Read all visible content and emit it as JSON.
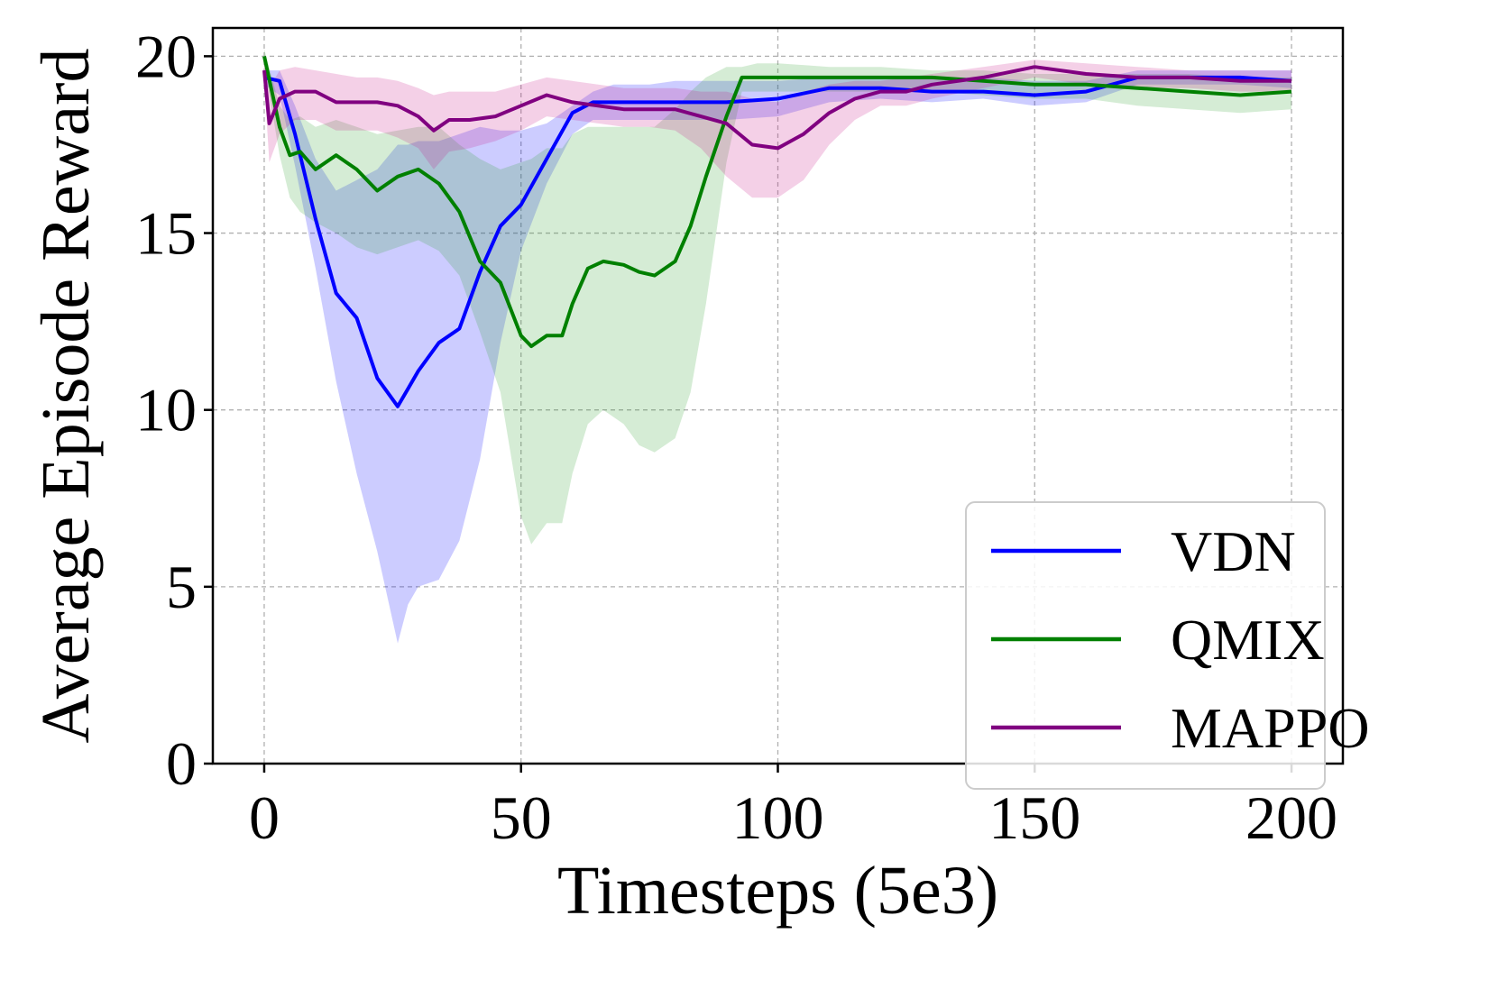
{
  "chart_data": {
    "type": "line",
    "title": "",
    "xlabel": "Timesteps (5e3)",
    "ylabel": "Average Episode Reward",
    "xlim": [
      -10,
      210
    ],
    "ylim": [
      0,
      20.8
    ],
    "xticks": [
      0,
      50,
      100,
      150,
      200
    ],
    "xtick_labels": [
      "0",
      "50",
      "100",
      "150",
      "200"
    ],
    "yticks": [
      0,
      5,
      10,
      15,
      20
    ],
    "ytick_labels": [
      "0",
      "5",
      "10",
      "15",
      "20"
    ],
    "grid": true,
    "legend_position": "lower-right",
    "series": [
      {
        "name": "VDN",
        "color": "#0000ff",
        "band_color": "#0000ff",
        "x": [
          0,
          3,
          6,
          10,
          14,
          18,
          22,
          26,
          28,
          30,
          34,
          38,
          42,
          46,
          50,
          55,
          60,
          64,
          68,
          75,
          80,
          90,
          100,
          110,
          120,
          130,
          140,
          150,
          160,
          170,
          180,
          190,
          200
        ],
        "y": [
          19.4,
          19.3,
          17.8,
          15.4,
          13.3,
          12.6,
          10.9,
          10.1,
          10.6,
          11.1,
          11.9,
          12.3,
          13.9,
          15.2,
          15.8,
          17.1,
          18.4,
          18.7,
          18.7,
          18.7,
          18.7,
          18.7,
          18.8,
          19.1,
          19.1,
          19.0,
          19.0,
          18.9,
          19.0,
          19.4,
          19.4,
          19.4,
          19.3
        ],
        "lower": [
          19.2,
          18.9,
          16.9,
          14.0,
          10.8,
          8.2,
          6.0,
          3.4,
          4.5,
          5.0,
          5.2,
          6.3,
          8.6,
          11.9,
          14.5,
          16.4,
          17.8,
          18.2,
          18.2,
          18.2,
          18.2,
          18.2,
          18.3,
          18.7,
          18.8,
          18.7,
          18.8,
          18.6,
          18.7,
          19.2,
          19.2,
          19.2,
          19.1
        ],
        "upper": [
          19.6,
          19.6,
          18.6,
          17.1,
          16.2,
          16.5,
          16.8,
          17.5,
          17.5,
          17.6,
          17.6,
          17.8,
          18.0,
          17.9,
          17.9,
          18.1,
          18.6,
          19.0,
          19.2,
          19.2,
          19.3,
          19.3,
          19.3,
          19.4,
          19.4,
          19.4,
          19.4,
          19.3,
          19.3,
          19.6,
          19.6,
          19.6,
          19.6
        ]
      },
      {
        "name": "QMIX",
        "color": "#008000",
        "band_color": "#2ca02c",
        "x": [
          0,
          3,
          5,
          7,
          10,
          14,
          18,
          22,
          26,
          30,
          34,
          38,
          42,
          46,
          50,
          52,
          55,
          58,
          60,
          63,
          66,
          70,
          73,
          76,
          80,
          83,
          86,
          90,
          93,
          96,
          100,
          110,
          120,
          130,
          140,
          150,
          160,
          170,
          180,
          190,
          200
        ],
        "y": [
          20.0,
          18.0,
          17.2,
          17.3,
          16.8,
          17.2,
          16.8,
          16.2,
          16.6,
          16.8,
          16.4,
          15.6,
          14.2,
          13.6,
          12.1,
          11.8,
          12.1,
          12.1,
          13.0,
          14.0,
          14.2,
          14.1,
          13.9,
          13.8,
          14.2,
          15.2,
          16.6,
          18.3,
          19.4,
          19.4,
          19.4,
          19.4,
          19.4,
          19.4,
          19.3,
          19.2,
          19.2,
          19.1,
          19.0,
          18.9,
          19.0
        ],
        "lower": [
          19.8,
          17.2,
          16.0,
          15.6,
          15.3,
          15.0,
          14.6,
          14.4,
          14.6,
          14.8,
          14.5,
          13.8,
          12.2,
          10.5,
          7.0,
          6.2,
          6.8,
          6.8,
          8.2,
          9.6,
          10.0,
          9.6,
          9.0,
          8.8,
          9.2,
          10.5,
          13.0,
          17.0,
          19.0,
          19.0,
          19.0,
          19.0,
          19.0,
          19.0,
          18.9,
          18.8,
          18.8,
          18.6,
          18.5,
          18.4,
          18.5
        ],
        "upper": [
          20.2,
          18.6,
          18.2,
          18.3,
          18.0,
          18.2,
          18.0,
          17.8,
          17.9,
          18.0,
          18.0,
          17.5,
          17.1,
          16.8,
          17.0,
          17.1,
          17.4,
          17.4,
          17.8,
          18.0,
          18.0,
          18.0,
          18.0,
          18.0,
          18.5,
          19.0,
          19.4,
          19.7,
          19.7,
          19.8,
          19.8,
          19.7,
          19.7,
          19.6,
          19.6,
          19.5,
          19.5,
          19.5,
          19.5,
          19.4,
          19.4
        ]
      },
      {
        "name": "MAPPO",
        "color": "#800080",
        "band_color": "#c71585",
        "x": [
          0,
          1,
          3,
          6,
          10,
          14,
          18,
          22,
          26,
          30,
          33,
          36,
          40,
          45,
          50,
          55,
          60,
          65,
          70,
          75,
          80,
          85,
          90,
          95,
          100,
          105,
          110,
          115,
          120,
          125,
          130,
          140,
          150,
          160,
          170,
          180,
          190,
          200
        ],
        "y": [
          19.6,
          18.1,
          18.8,
          19.0,
          19.0,
          18.7,
          18.7,
          18.7,
          18.6,
          18.3,
          17.9,
          18.2,
          18.2,
          18.3,
          18.6,
          18.9,
          18.7,
          18.6,
          18.5,
          18.5,
          18.5,
          18.3,
          18.1,
          17.5,
          17.4,
          17.8,
          18.4,
          18.8,
          19.0,
          19.0,
          19.2,
          19.4,
          19.7,
          19.5,
          19.4,
          19.4,
          19.3,
          19.3
        ],
        "lower": [
          19.3,
          17.0,
          17.8,
          18.2,
          18.2,
          17.9,
          17.9,
          17.9,
          17.7,
          17.4,
          16.8,
          17.3,
          17.4,
          17.6,
          17.9,
          18.3,
          18.2,
          18.1,
          18.0,
          18.0,
          17.9,
          17.4,
          16.6,
          16.0,
          16.0,
          16.5,
          17.5,
          18.2,
          18.6,
          18.6,
          18.8,
          19.1,
          19.4,
          19.2,
          19.1,
          19.1,
          19.0,
          19.0
        ],
        "upper": [
          19.8,
          19.1,
          19.6,
          19.7,
          19.6,
          19.5,
          19.4,
          19.4,
          19.3,
          19.1,
          18.9,
          19.0,
          19.0,
          19.0,
          19.2,
          19.4,
          19.3,
          19.2,
          19.1,
          19.1,
          19.1,
          19.0,
          19.0,
          18.8,
          18.7,
          19.0,
          19.2,
          19.3,
          19.3,
          19.4,
          19.5,
          19.7,
          19.9,
          19.8,
          19.7,
          19.6,
          19.6,
          19.6
        ]
      }
    ]
  }
}
